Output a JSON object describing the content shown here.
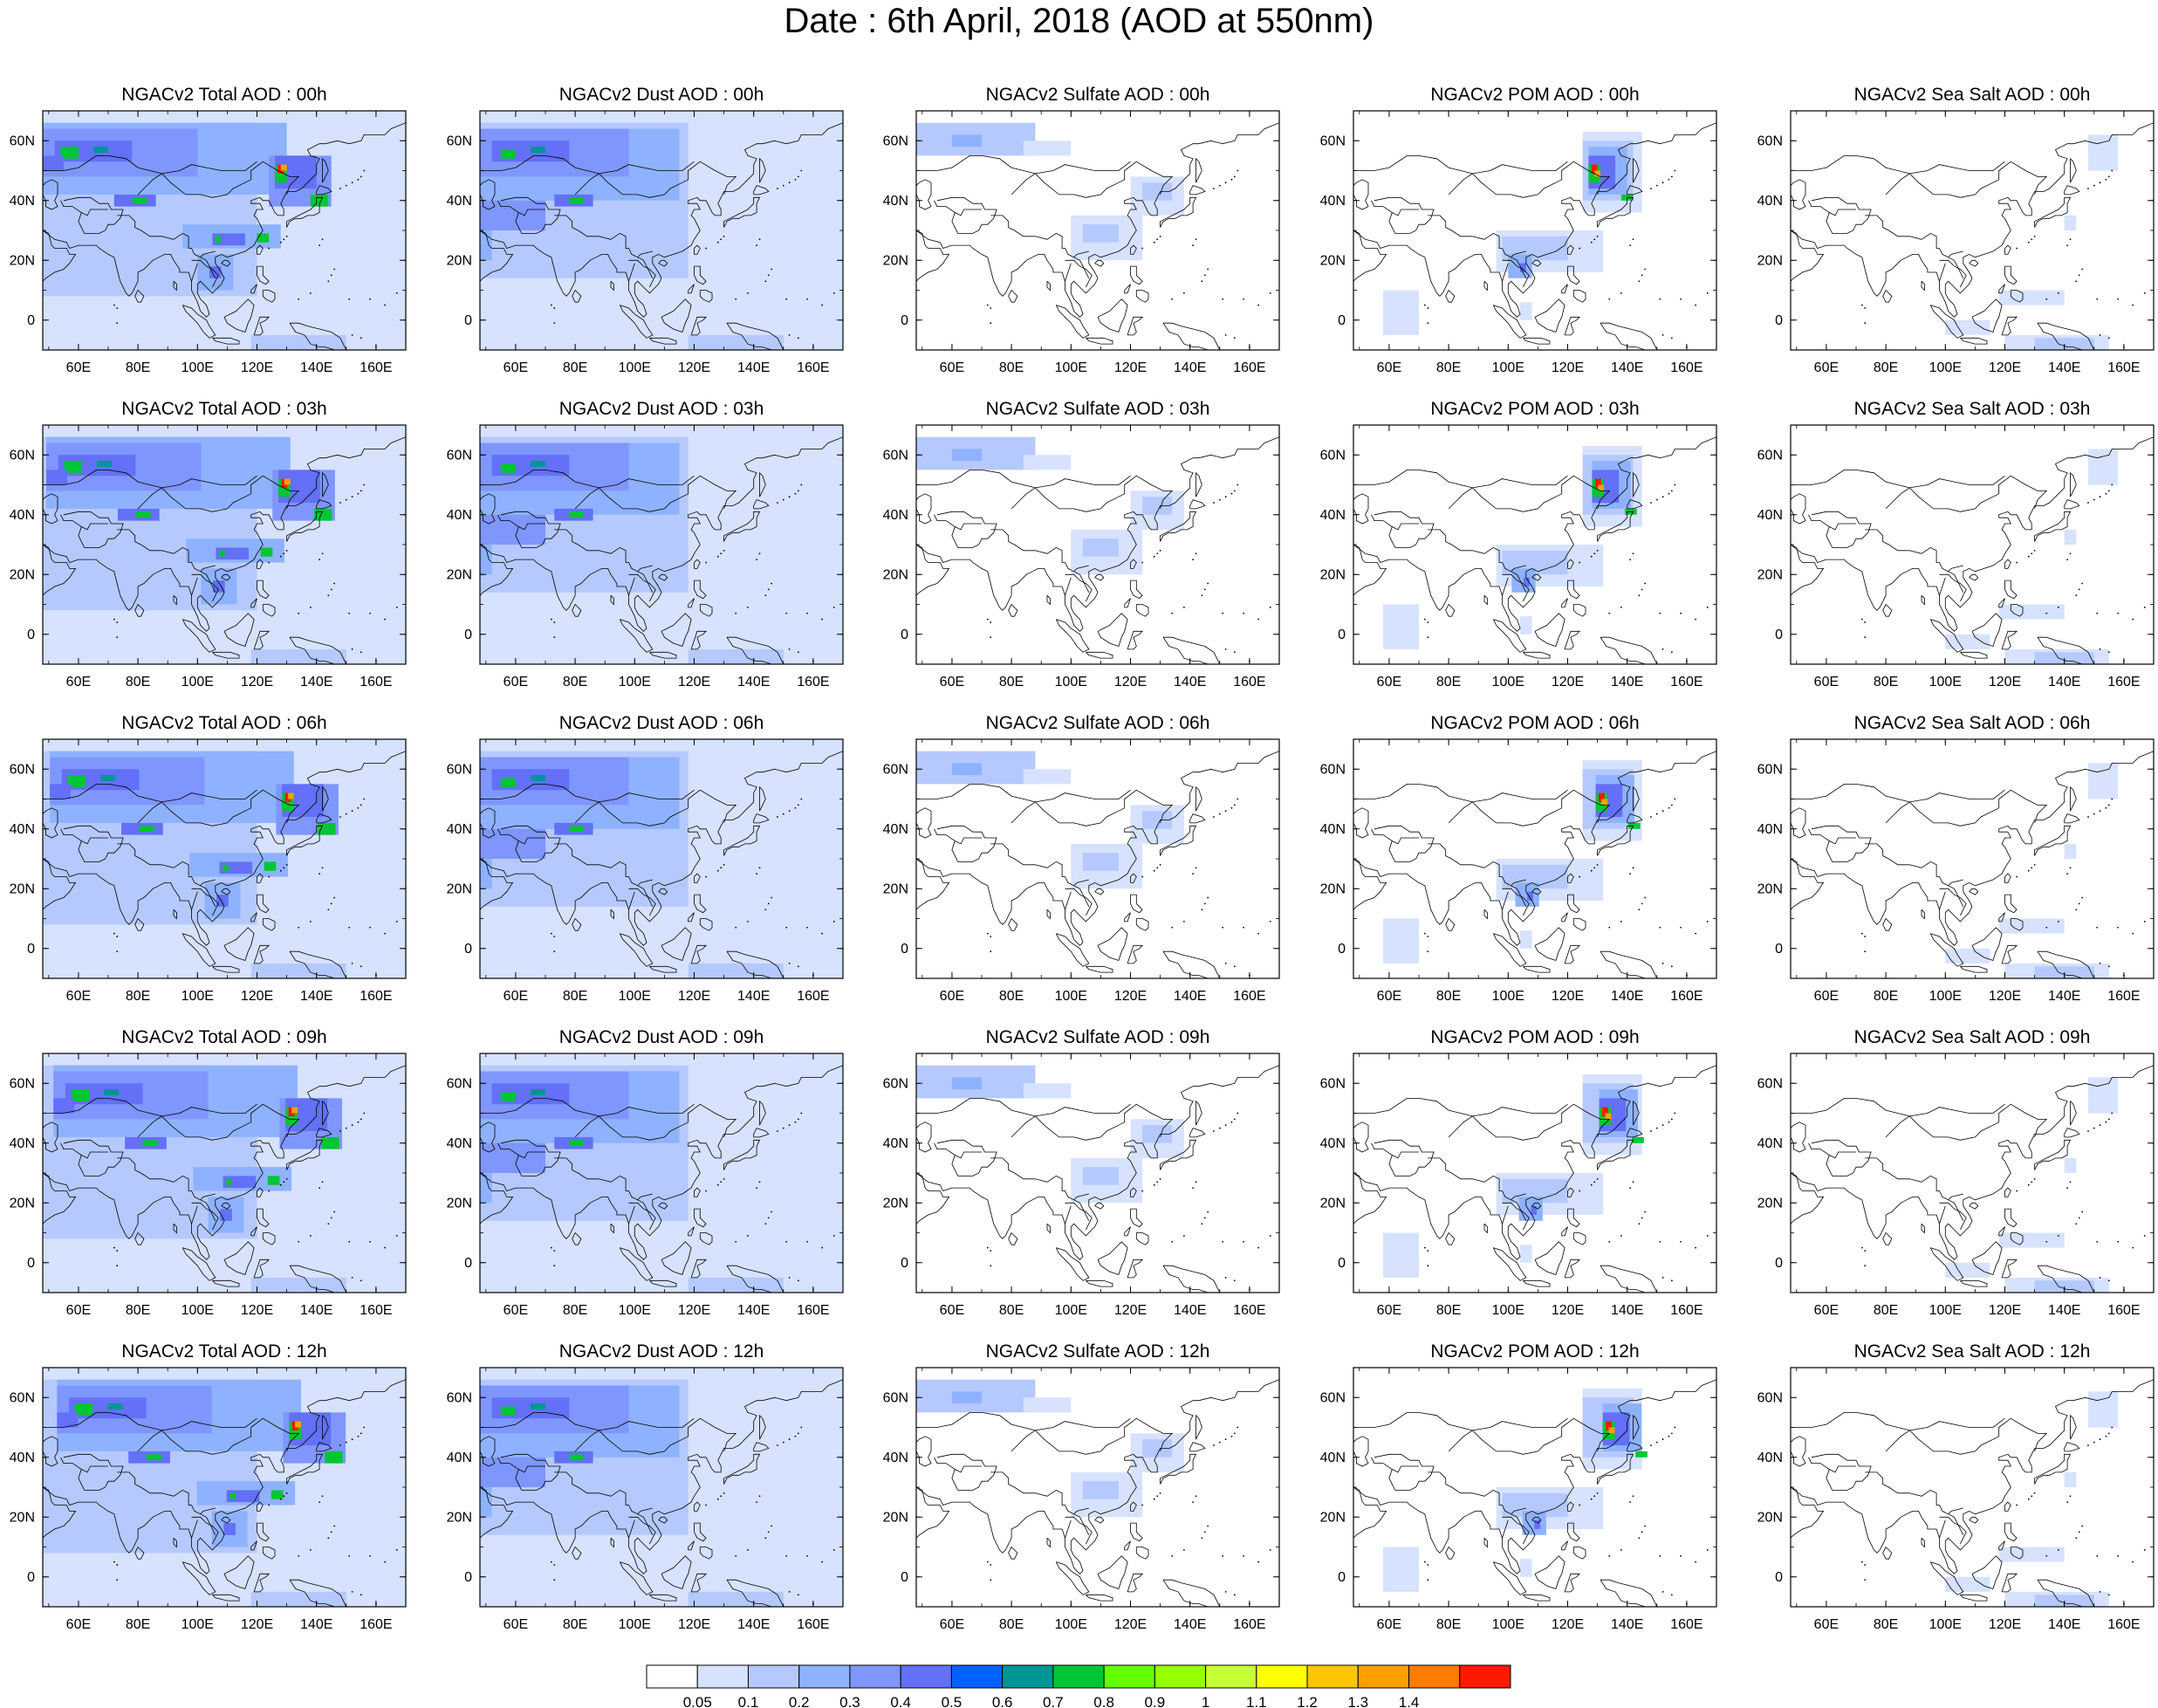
{
  "title": "Date : 6th April, 2018 (AOD at 550nm)",
  "columns": [
    "total",
    "dust",
    "sulfate",
    "pom",
    "seasalt"
  ],
  "panel_titles": [
    [
      "NGACv2 Total AOD : 00h",
      "NGACv2 Dust AOD : 00h",
      "NGACv2 Sulfate AOD : 00h",
      "NGACv2 POM AOD : 00h",
      "NGACv2 Sea Salt AOD : 00h"
    ],
    [
      "NGACv2 Total AOD : 03h",
      "NGACv2 Dust AOD : 03h",
      "NGACv2 Sulfate AOD : 03h",
      "NGACv2 POM AOD : 03h",
      "NGACv2 Sea Salt AOD : 03h"
    ],
    [
      "NGACv2 Total AOD : 06h",
      "NGACv2 Dust AOD : 06h",
      "NGACv2 Sulfate AOD : 06h",
      "NGACv2 POM AOD : 06h",
      "NGACv2 Sea Salt AOD : 06h"
    ],
    [
      "NGACv2 Total AOD : 09h",
      "NGACv2 Dust AOD : 09h",
      "NGACv2 Sulfate AOD : 09h",
      "NGACv2 POM AOD : 09h",
      "NGACv2 Sea Salt  AOD : 09h"
    ],
    [
      "NGACv2 Total AOD  : 12h",
      "NGACv2 Dust AOD : 12h",
      "NGACv2 Sulfate AOD : 12h",
      "NGACv2 POM  AOD : 12h",
      "NGACv2 Sea Salt  AOD : 12h"
    ]
  ],
  "axis": {
    "lon_ticks": [
      "60E",
      "80E",
      "100E",
      "120E",
      "140E",
      "160E"
    ],
    "lon_values": [
      60,
      80,
      100,
      120,
      140,
      160
    ],
    "lat_ticks": [
      "60N",
      "40N",
      "20N",
      "0"
    ],
    "lat_values": [
      60,
      40,
      20,
      0
    ],
    "lon_range": [
      48,
      170
    ],
    "lat_range": [
      -10,
      70
    ]
  },
  "colorbar": {
    "labels": [
      "0.05",
      "0.1",
      "0.2",
      "0.3",
      "0.4",
      "0.5",
      "0.6",
      "0.7",
      "0.8",
      "0.9",
      "1",
      "1.1",
      "1.2",
      "1.3",
      "1.4"
    ],
    "colors": [
      "#ffffff",
      "#d6e2ff",
      "#b5c9ff",
      "#8eb2ff",
      "#7f96ff",
      "#6370f7",
      "#0063ff",
      "#009696",
      "#00c633",
      "#63ff00",
      "#96ff00",
      "#c6ff33",
      "#ffff00",
      "#ffc600",
      "#ffa000",
      "#ff7c00",
      "#ff1900"
    ]
  },
  "map_colors": {
    "land_outline": "#000000",
    "very_low": "#d6e2ff",
    "low": "#b5c9ff",
    "moderate": "#8eb2ff",
    "elevated": "#7f96ff",
    "high": "#6370f7",
    "dust_peak": "#009696",
    "green": "#00c633",
    "yellow": "#ffff00",
    "orange": "#ffa000",
    "red": "#ff1900"
  }
}
